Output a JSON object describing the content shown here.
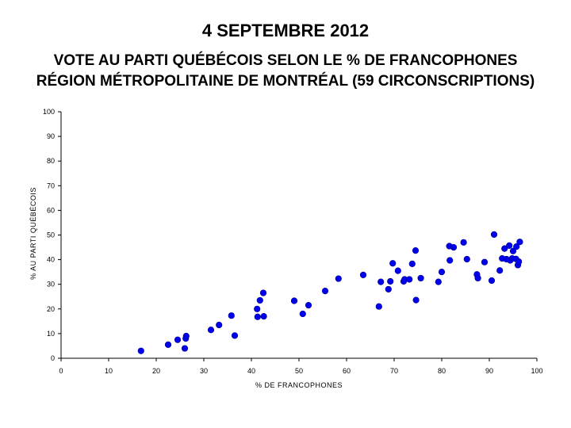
{
  "header": {
    "title": "4 SEPTEMBRE 2012",
    "subtitle_line1": "VOTE AU PARTI QUÉBÉCOIS SELON LE % DE FRANCOPHONES",
    "subtitle_line2": "RÉGION MÉTROPOLITAINE DE MONTRÉAL (59 CIRCONSCRIPTIONS)"
  },
  "chart_data": {
    "type": "scatter",
    "title": "4 SEPTEMBRE 2012",
    "subtitle": "VOTE AU PARTI QUÉBÉCOIS SELON LE % DE FRANCOPHONES RÉGION MÉTROPOLITAINE DE MONTRÉAL (59 CIRCONSCRIPTIONS)",
    "xlabel": "% DE FRANCOPHONES",
    "ylabel": "% AU PARTI QUÉBÉCOIS",
    "xlim": [
      0,
      100
    ],
    "ylim": [
      0,
      100
    ],
    "xticks": [
      "0",
      "10",
      "20",
      "30",
      "40",
      "50",
      "60",
      "70",
      "80",
      "90",
      "100"
    ],
    "yticks": [
      "0",
      "10",
      "20",
      "30",
      "40",
      "50",
      "60",
      "70",
      "80",
      "90",
      "100"
    ],
    "grid": false,
    "legend": "none",
    "marker_color": "#0000ee",
    "points": [
      {
        "x": 16.8,
        "y": 3
      },
      {
        "x": 22.5,
        "y": 5.5
      },
      {
        "x": 24.5,
        "y": 7.5
      },
      {
        "x": 26.2,
        "y": 8
      },
      {
        "x": 26.3,
        "y": 9
      },
      {
        "x": 26,
        "y": 4
      },
      {
        "x": 31.5,
        "y": 11.5
      },
      {
        "x": 33.2,
        "y": 13.5
      },
      {
        "x": 35.8,
        "y": 17.3
      },
      {
        "x": 36.5,
        "y": 9.2
      },
      {
        "x": 41.2,
        "y": 20
      },
      {
        "x": 41.8,
        "y": 23.5
      },
      {
        "x": 42.5,
        "y": 26.5
      },
      {
        "x": 41.3,
        "y": 16.8
      },
      {
        "x": 42.6,
        "y": 17
      },
      {
        "x": 49,
        "y": 23.3
      },
      {
        "x": 50.8,
        "y": 18
      },
      {
        "x": 52,
        "y": 21.5
      },
      {
        "x": 55.5,
        "y": 27.3
      },
      {
        "x": 58.3,
        "y": 32.3
      },
      {
        "x": 63.5,
        "y": 33.8
      },
      {
        "x": 66.8,
        "y": 21
      },
      {
        "x": 67.2,
        "y": 31
      },
      {
        "x": 68.8,
        "y": 28
      },
      {
        "x": 69.2,
        "y": 31.2
      },
      {
        "x": 69.7,
        "y": 38.5
      },
      {
        "x": 70.8,
        "y": 35.5
      },
      {
        "x": 72,
        "y": 31.2
      },
      {
        "x": 72.2,
        "y": 32
      },
      {
        "x": 73.2,
        "y": 32
      },
      {
        "x": 73.8,
        "y": 38.3
      },
      {
        "x": 74.5,
        "y": 43.7
      },
      {
        "x": 74.6,
        "y": 23.6
      },
      {
        "x": 75.6,
        "y": 32.5
      },
      {
        "x": 79.3,
        "y": 31
      },
      {
        "x": 80,
        "y": 35
      },
      {
        "x": 81.6,
        "y": 45.5
      },
      {
        "x": 81.7,
        "y": 39.7
      },
      {
        "x": 82.5,
        "y": 45
      },
      {
        "x": 84.6,
        "y": 47
      },
      {
        "x": 85.3,
        "y": 40.2
      },
      {
        "x": 87.4,
        "y": 34
      },
      {
        "x": 87.6,
        "y": 32.5
      },
      {
        "x": 89,
        "y": 39
      },
      {
        "x": 90.5,
        "y": 31.5
      },
      {
        "x": 91,
        "y": 50.2
      },
      {
        "x": 92.2,
        "y": 35.6
      },
      {
        "x": 92.7,
        "y": 40.5
      },
      {
        "x": 93.2,
        "y": 44.5
      },
      {
        "x": 93.6,
        "y": 40.2
      },
      {
        "x": 94.2,
        "y": 45.7
      },
      {
        "x": 94.4,
        "y": 39.7
      },
      {
        "x": 94.8,
        "y": 40.5
      },
      {
        "x": 95,
        "y": 43.5
      },
      {
        "x": 95.6,
        "y": 40.3
      },
      {
        "x": 95.7,
        "y": 45.3
      },
      {
        "x": 96,
        "y": 37.8
      },
      {
        "x": 96.2,
        "y": 39.2
      },
      {
        "x": 96.4,
        "y": 47.2
      }
    ]
  }
}
